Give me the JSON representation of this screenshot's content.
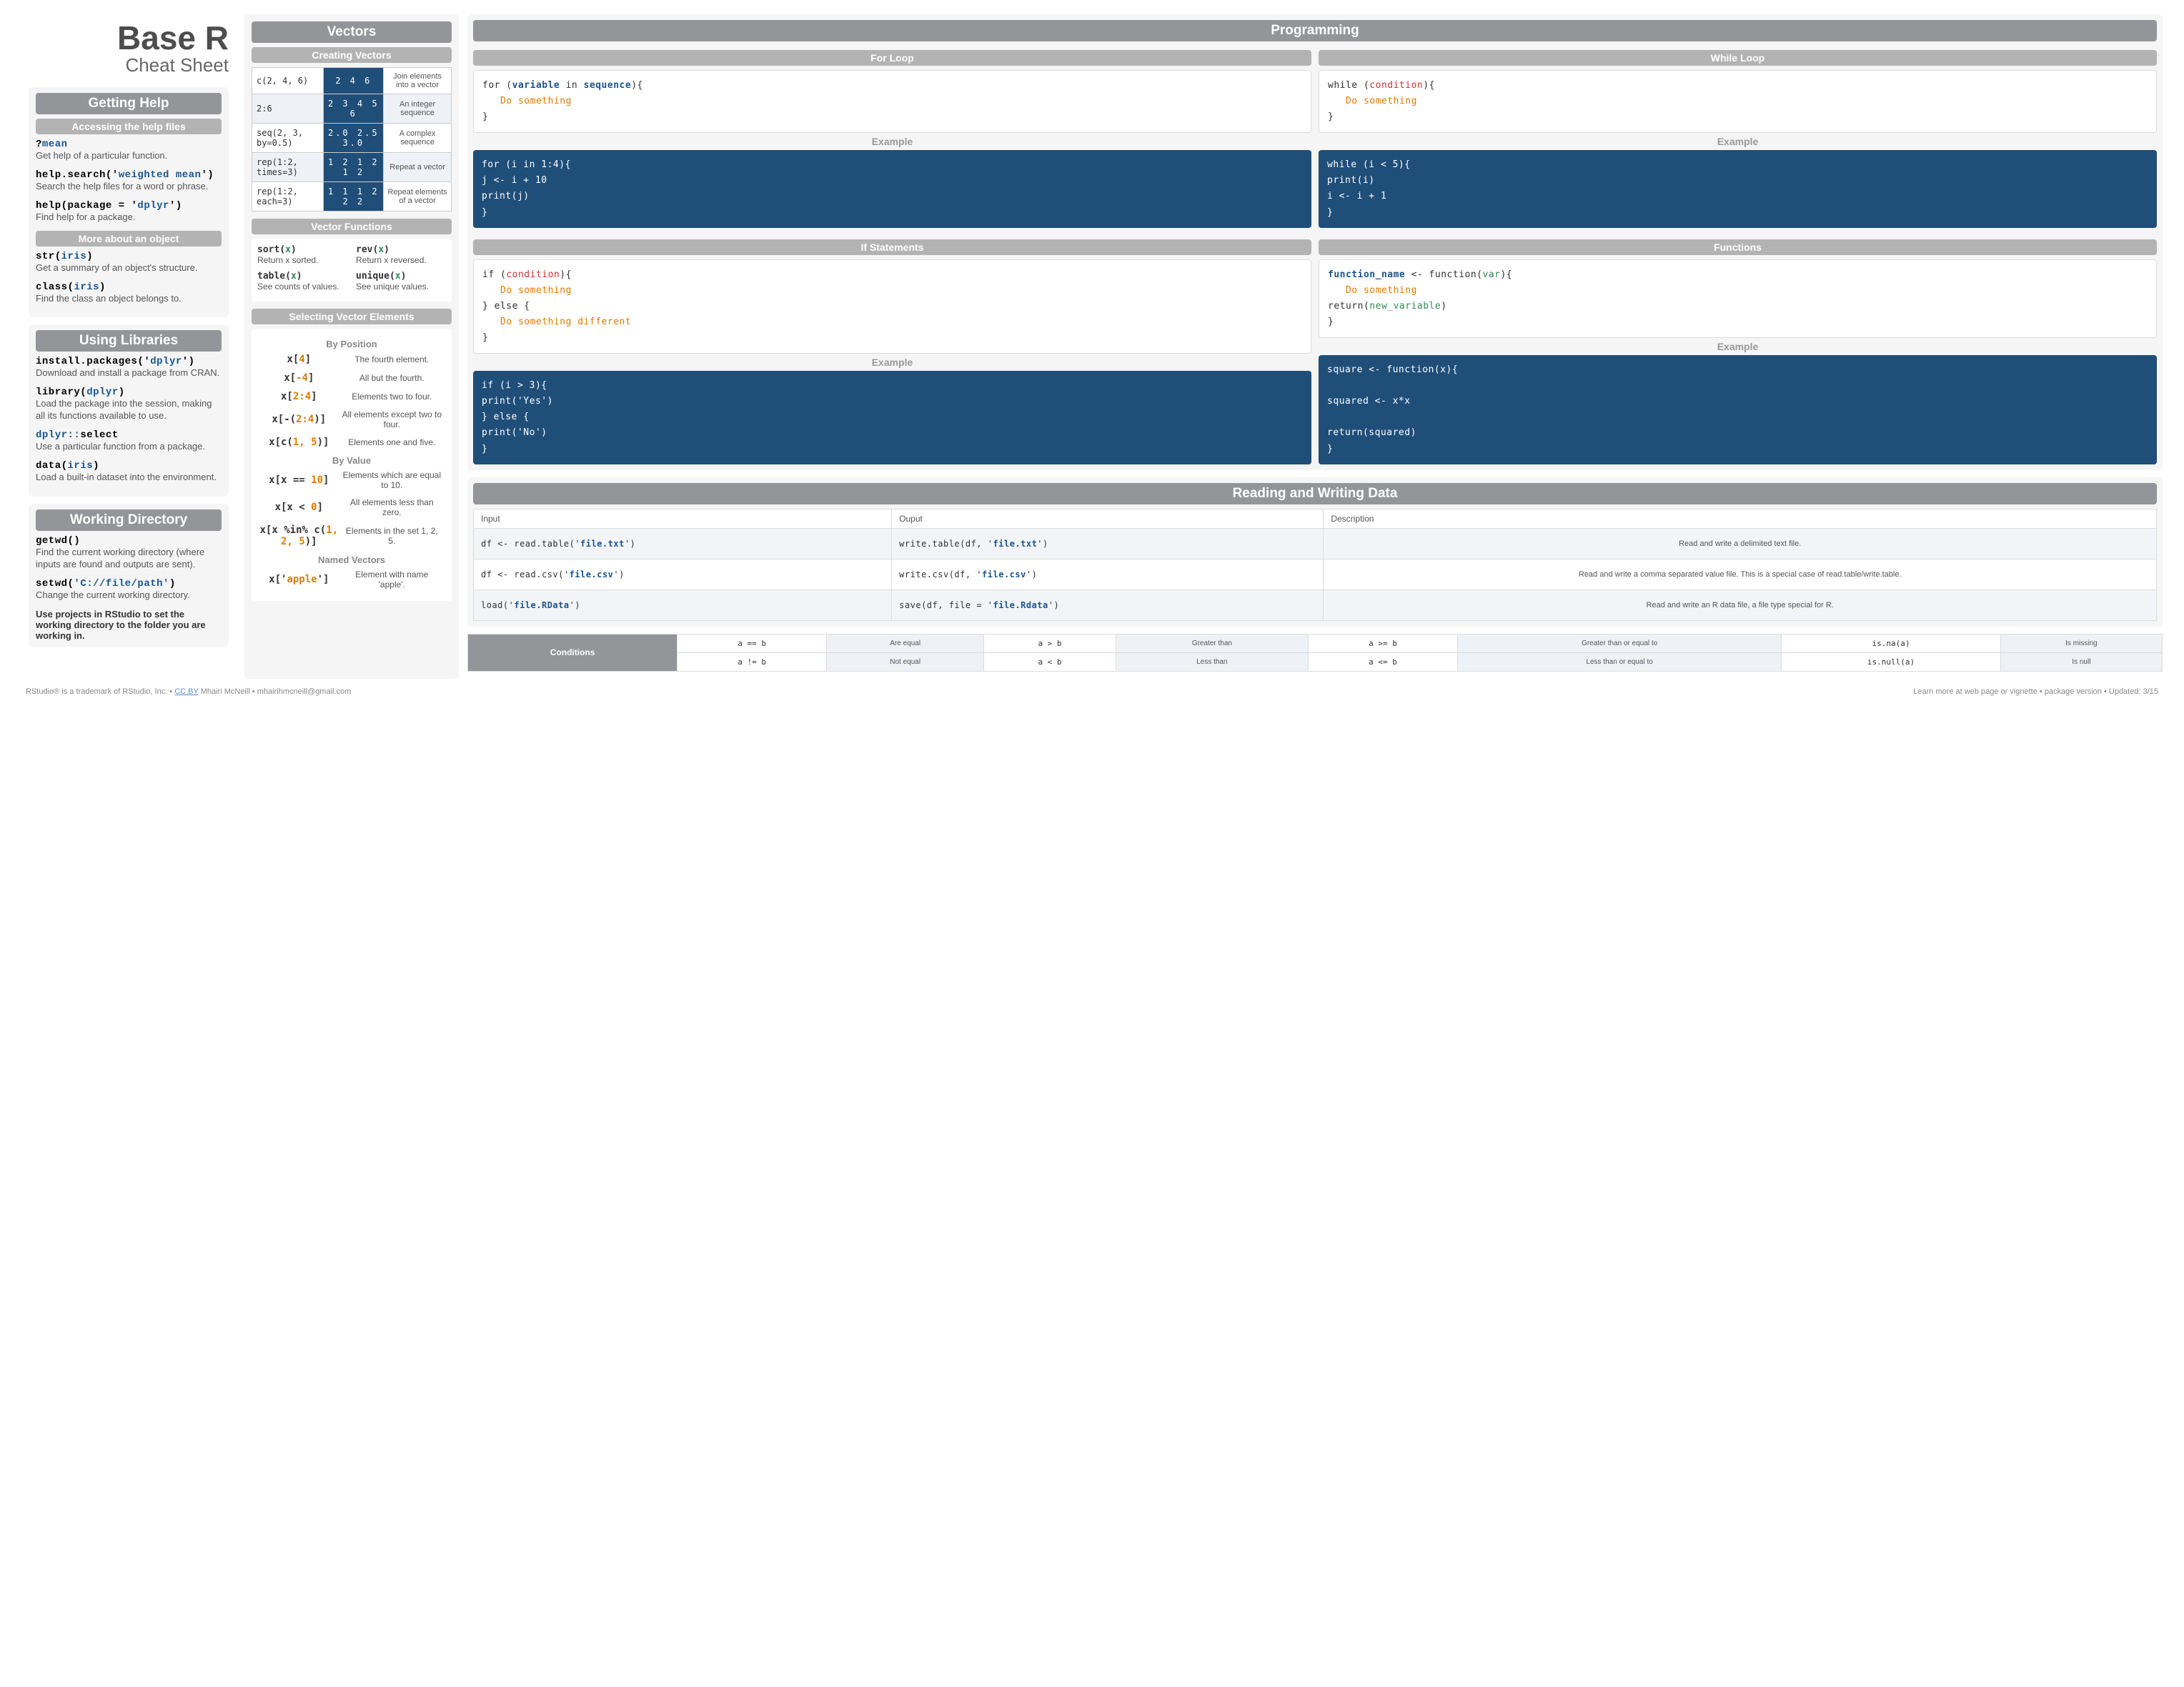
{
  "title": {
    "main": "Base R",
    "sub": "Cheat Sheet"
  },
  "colors": {
    "header_gray": "#939598",
    "sub_gray": "#b3b3b3",
    "panel_bg": "#f5f5f5",
    "code_blue_bg": "#1f4e79",
    "kw_blue": "#1a5490",
    "kw_orange": "#e07b00",
    "kw_green": "#2e8b57",
    "kw_red": "#cc3333"
  },
  "help": {
    "header": "Getting Help",
    "access_header": "Accessing the help files",
    "items": [
      {
        "pre": "?",
        "arg": "mean",
        "desc": "Get help of a particular function."
      },
      {
        "pre": "help.search('",
        "arg": "weighted mean",
        "post": "')",
        "desc": "Search the help files for a word or phrase."
      },
      {
        "pre": "help(package = '",
        "arg": "dplyr",
        "post": "')",
        "desc": "Find help for a package."
      }
    ],
    "more_header": "More about an object",
    "more": [
      {
        "pre": "str(",
        "arg": "iris",
        "post": ")",
        "desc": "Get a summary of an object's structure."
      },
      {
        "pre": "class(",
        "arg": "iris",
        "post": ")",
        "desc": "Find the class an object belongs to."
      }
    ]
  },
  "libs": {
    "header": "Using Libraries",
    "items": [
      {
        "pre": "install.packages('",
        "arg": "dplyr",
        "post": "')",
        "desc": "Download and install a package from CRAN."
      },
      {
        "pre": "library(",
        "arg": "dplyr",
        "post": ")",
        "desc": "Load the package into the session, making all its functions available to use."
      },
      {
        "pre_blue": "dplyr::",
        "arg": "select",
        "desc": "Use a particular function from a package."
      },
      {
        "pre": "data(",
        "arg": "iris",
        "post": ")",
        "desc": "Load a built-in dataset into the environment."
      }
    ]
  },
  "wd": {
    "header": "Working Directory",
    "items": [
      {
        "code": "getwd()",
        "desc": "Find the current working directory (where inputs are found and outputs are sent)."
      },
      {
        "pre": "setwd(",
        "arg": "'C://file/path'",
        "post": ")",
        "desc": "Change the current working directory."
      }
    ],
    "note": "Use projects in RStudio to set the working directory to the folder you are working in."
  },
  "vectors": {
    "header": "Vectors",
    "create_header": "Creating Vectors",
    "rows": [
      {
        "code": "c(2, 4, 6)",
        "out": "2 4 6",
        "desc": "Join elements into a vector"
      },
      {
        "code": "2:6",
        "out": "2 3 4 5 6",
        "desc": "An integer sequence"
      },
      {
        "code": "seq(2, 3, by=0.5)",
        "out": "2.0 2.5 3.0",
        "desc": "A complex sequence"
      },
      {
        "code": "rep(1:2, times=3)",
        "out": "1 2 1 2 1 2",
        "desc": "Repeat a vector"
      },
      {
        "code": "rep(1:2, each=3)",
        "out": "1 1 1 2 2 2",
        "desc": "Repeat elements of a vector"
      }
    ],
    "funcs_header": "Vector Functions",
    "funcs": [
      {
        "name": "sort(",
        "arg": "x",
        "post": ")",
        "desc": "Return x sorted."
      },
      {
        "name": "rev(",
        "arg": "x",
        "post": ")",
        "desc": "Return x reversed."
      },
      {
        "name": "table(",
        "arg": "x",
        "post": ")",
        "desc": "See counts of values."
      },
      {
        "name": "unique(",
        "arg": "x",
        "post": ")",
        "desc": "See unique values."
      }
    ],
    "select_header": "Selecting Vector Elements",
    "by_position": "By Position",
    "by_value": "By Value",
    "named": "Named Vectors",
    "pos": [
      {
        "pre": "x[",
        "arg": "4",
        "post": "]",
        "desc": "The fourth element."
      },
      {
        "pre": "x[",
        "arg": "-4",
        "post": "]",
        "desc": "All but the fourth."
      },
      {
        "pre": "x[",
        "arg": "2:4",
        "post": "]",
        "desc": "Elements two to four."
      },
      {
        "pre": "x[-(",
        "arg": "2:4",
        "post": ")]",
        "desc": "All elements except two to four."
      },
      {
        "pre": "x[c(",
        "arg": "1,  5",
        "post": ")]",
        "desc": "Elements one and five."
      }
    ],
    "val": [
      {
        "pre": "x[x == ",
        "arg": "10",
        "post": "]",
        "desc": "Elements which are equal to 10."
      },
      {
        "pre": "x[x < ",
        "arg": "0",
        "post": "]",
        "desc": "All elements less than zero."
      },
      {
        "pre": "x[x %in% c(",
        "arg": "1,  2,  5",
        "post": ")]",
        "desc": "Elements in the set 1, 2, 5."
      }
    ],
    "named_row": {
      "pre": "x['",
      "arg": "apple",
      "post": "']",
      "desc": "Element with name 'apple'."
    }
  },
  "prog": {
    "header": "Programming",
    "for_header": "For Loop",
    "while_header": "While Loop",
    "if_header": "If Statements",
    "func_header": "Functions",
    "example": "Example",
    "for_tpl": {
      "l1a": "for (",
      "l1_var": "variable",
      "l1b": " in ",
      "l1_seq": "sequence",
      "l1c": "){",
      "l2": "Do something",
      "l3": "}"
    },
    "for_ex": [
      "for (i in 1:4){",
      "   j <- i + 10",
      "   print(j)",
      "}"
    ],
    "while_tpl": {
      "l1a": "while (",
      "l1_cond": "condition",
      "l1b": "){",
      "l2": "Do something",
      "l3": "}"
    },
    "while_ex": [
      "while (i < 5){",
      "   print(i)",
      "   i <- i + 1",
      "}"
    ],
    "if_tpl": {
      "l1a": "if (",
      "l1_cond": "condition",
      "l1b": "){",
      "l2": "Do something",
      "l3": "} else {",
      "l4": "Do something different",
      "l5": "}"
    },
    "if_ex": [
      "if (i > 3){",
      "   print('Yes')",
      "} else {",
      "   print('No')",
      "}"
    ],
    "fn_tpl": {
      "l1a": "function_name",
      "l1b": " <- function(",
      "l1_var": "var",
      "l1c": "){",
      "l2": "Do something",
      "l3a": "   return(",
      "l3_var": "new_variable",
      "l3b": ")",
      "l4": "}"
    },
    "fn_ex": [
      "square <- function(x){",
      "",
      "   squared <- x*x",
      "",
      "   return(squared)",
      "}"
    ]
  },
  "io": {
    "header": "Reading and Writing Data",
    "cols": [
      "Input",
      "Ouput",
      "Description"
    ],
    "rows": [
      {
        "in_pre": "df <- read.table('",
        "in_arg": "file.txt",
        "in_post": "')",
        "out_pre": "write.table(df, '",
        "out_arg": "file.txt",
        "out_post": "')",
        "desc": "Read and write a delimited text file."
      },
      {
        "in_pre": "df <- read.csv('",
        "in_arg": "file.csv",
        "in_post": "')",
        "out_pre": "write.csv(df, '",
        "out_arg": "file.csv",
        "out_post": "')",
        "desc": "Read and write a comma separated value file. This is a special case of read.table/write.table."
      },
      {
        "in_pre": "load('",
        "in_arg": "file.RData",
        "in_post": "')",
        "out_pre": "save(df, file = '",
        "out_arg": "file.Rdata",
        "out_post": "')",
        "desc": "Read and write an R data file, a file type special for R."
      }
    ]
  },
  "cond": {
    "label": "Conditions",
    "cells": [
      [
        {
          "op": "a == b",
          "d": "Are equal"
        },
        {
          "op": "a > b",
          "d": "Greater than"
        },
        {
          "op": "a >= b",
          "d": "Greater than or equal to"
        },
        {
          "op": "is.na(a)",
          "d": "Is missing"
        }
      ],
      [
        {
          "op": "a != b",
          "d": "Not equal"
        },
        {
          "op": "a < b",
          "d": "Less than"
        },
        {
          "op": "a <= b",
          "d": "Less than or equal to"
        },
        {
          "op": "is.null(a)",
          "d": "Is null"
        }
      ]
    ]
  },
  "footer": {
    "left_a": "RStudio® is a trademark of RStudio, Inc.  •  ",
    "cc": "CC BY",
    "left_b": " Mhairi McNeill  •  mhairihmcneill@gmail.com",
    "right": "Learn more at web page or vignette  •  package  version  •  Updated: 3/15"
  }
}
